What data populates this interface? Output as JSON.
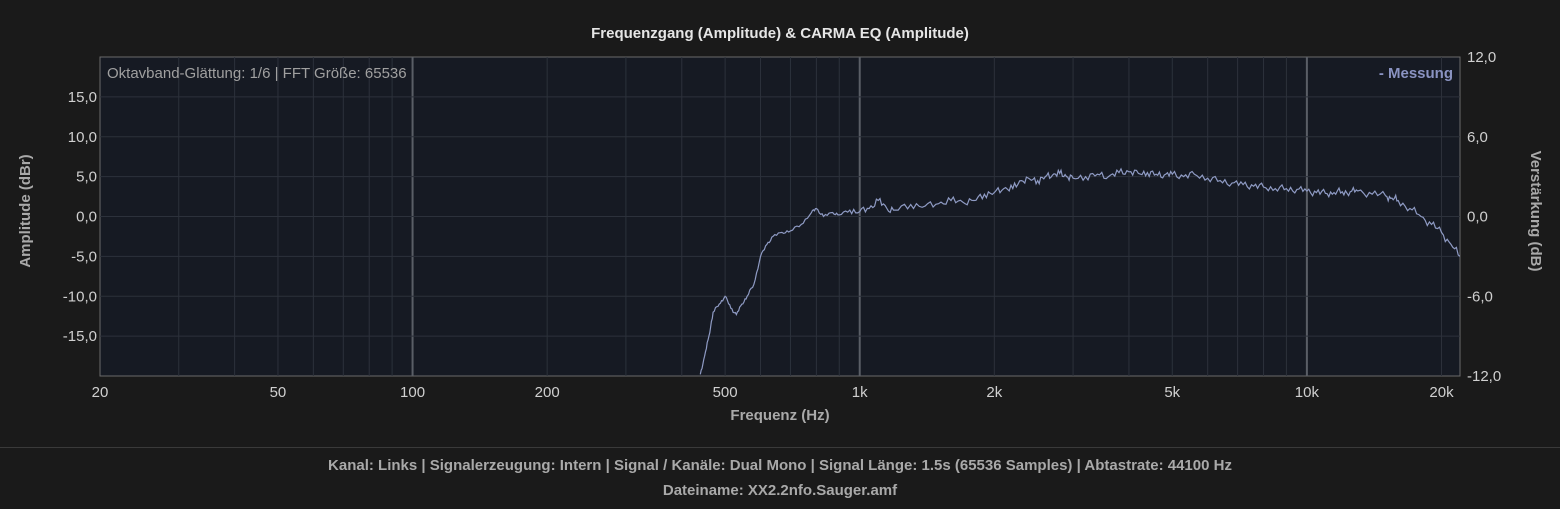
{
  "chart_data": {
    "type": "line",
    "title": "Frequenzgang (Amplitude) & CARMA EQ (Amplitude)",
    "xlabel": "Frequenz (Hz)",
    "ylabel": "Amplitude (dBr)",
    "y2label": "Verstärkung (dB)",
    "annotation": "Oktavband-Glättung: 1/6 | FFT Größe: 65536",
    "legend_entry": "- Messung",
    "legend_position": "top-right",
    "x_scale": "log",
    "xlim": [
      20,
      22000
    ],
    "ylim": [
      -20,
      20
    ],
    "y2lim": [
      -12,
      12
    ],
    "grid": true,
    "x_ticks": [
      {
        "value": 20,
        "label": "20"
      },
      {
        "value": 50,
        "label": "50"
      },
      {
        "value": 100,
        "label": "100"
      },
      {
        "value": 200,
        "label": "200"
      },
      {
        "value": 500,
        "label": "500"
      },
      {
        "value": 1000,
        "label": "1k"
      },
      {
        "value": 2000,
        "label": "2k"
      },
      {
        "value": 5000,
        "label": "5k"
      },
      {
        "value": 10000,
        "label": "10k"
      },
      {
        "value": 20000,
        "label": "20k"
      }
    ],
    "y_ticks": [
      {
        "value": 15,
        "label": "15,0"
      },
      {
        "value": 10,
        "label": "10,0"
      },
      {
        "value": 5,
        "label": "5,0"
      },
      {
        "value": 0,
        "label": "0,0"
      },
      {
        "value": -5,
        "label": "-5,0"
      },
      {
        "value": -10,
        "label": "-10,0"
      },
      {
        "value": -15,
        "label": "-15,0"
      }
    ],
    "y2_ticks": [
      {
        "value": 12,
        "label": "12,0"
      },
      {
        "value": 6,
        "label": "6,0"
      },
      {
        "value": 0,
        "label": "0,0"
      },
      {
        "value": -6,
        "label": "-6,0"
      },
      {
        "value": -12,
        "label": "-12,0"
      }
    ],
    "series": [
      {
        "name": "Messung",
        "color": "#8f9bc4",
        "x": [
          440,
          450,
          460,
          470,
          485,
          500,
          515,
          530,
          545,
          560,
          580,
          600,
          620,
          640,
          670,
          700,
          740,
          780,
          800,
          830,
          870,
          900,
          950,
          1000,
          1050,
          1100,
          1150,
          1200,
          1300,
          1400,
          1500,
          1600,
          1700,
          1800,
          1900,
          2000,
          2100,
          2200,
          2300,
          2400,
          2500,
          2600,
          2700,
          2800,
          2900,
          3000,
          3200,
          3400,
          3600,
          3800,
          4000,
          4200,
          4400,
          4600,
          4800,
          5000,
          5300,
          5600,
          6000,
          6400,
          6800,
          7200,
          7600,
          8000,
          8500,
          9000,
          9500,
          10000,
          10500,
          11000,
          11500,
          12000,
          12500,
          13000,
          14000,
          15000,
          15500,
          16000,
          17000,
          18000,
          19000,
          20000,
          21000,
          22000
        ],
        "y": [
          -19.8,
          -17.5,
          -15.0,
          -12.0,
          -11.0,
          -10.0,
          -11.5,
          -12.3,
          -11.0,
          -10.0,
          -8.5,
          -5.0,
          -3.5,
          -2.5,
          -2.0,
          -1.8,
          -1.0,
          0.5,
          1.0,
          0.0,
          0.5,
          0.2,
          0.8,
          0.6,
          1.0,
          2.0,
          1.0,
          0.8,
          1.5,
          1.3,
          1.6,
          2.0,
          1.8,
          2.0,
          2.8,
          3.0,
          3.5,
          3.5,
          4.5,
          4.7,
          4.5,
          5.0,
          5.2,
          5.4,
          5.0,
          4.8,
          5.0,
          5.3,
          5.0,
          5.5,
          5.6,
          5.4,
          5.5,
          5.3,
          5.2,
          5.3,
          5.0,
          5.3,
          4.8,
          4.5,
          4.2,
          4.0,
          3.8,
          3.7,
          3.5,
          3.5,
          3.4,
          3.2,
          3.0,
          2.9,
          3.0,
          3.1,
          3.1,
          3.2,
          2.8,
          2.6,
          2.3,
          2.0,
          1.0,
          0.0,
          -1.0,
          -2.0,
          -3.5,
          -5.0
        ]
      }
    ]
  },
  "footer": {
    "line1": "Kanal: Links  |  Signalerzeugung: Intern  |  Signal / Kanäle: Dual Mono  |  Signal Länge: 1.5s (65536 Samples)  |  Abtastrate: 44100 Hz",
    "line2": "Dateiname: XX2.2nfo.Sauger.amf"
  }
}
